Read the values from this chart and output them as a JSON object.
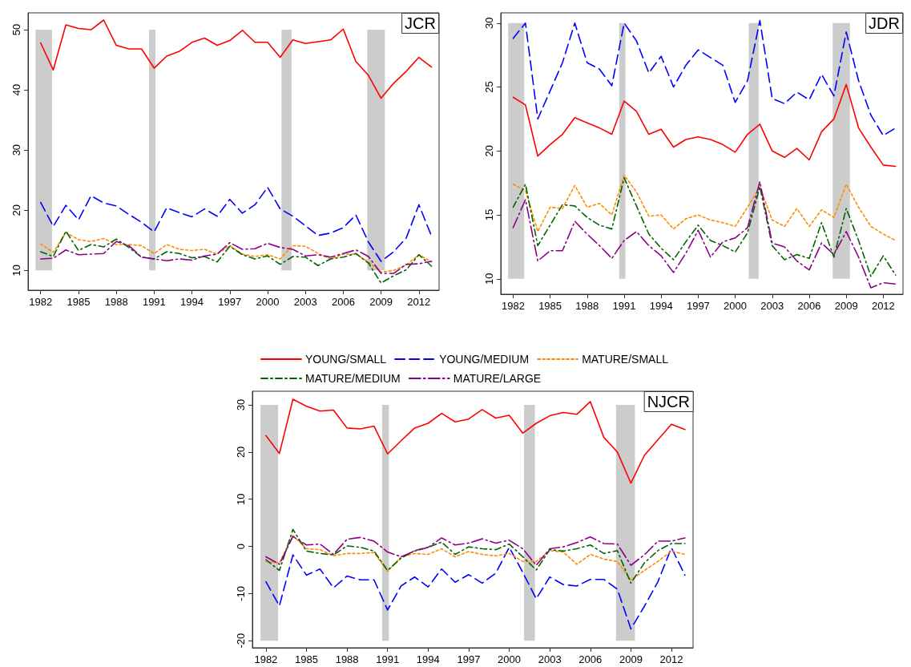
{
  "chart_data": [
    {
      "type": "line",
      "title": "JCR",
      "x": [
        1982,
        1983,
        1984,
        1985,
        1986,
        1987,
        1988,
        1989,
        1990,
        1991,
        1992,
        1993,
        1994,
        1995,
        1996,
        1997,
        1998,
        1999,
        2000,
        2001,
        2002,
        2003,
        2004,
        2005,
        2006,
        2007,
        2008,
        2009,
        2010,
        2011,
        2012,
        2013
      ],
      "xlim": [
        1981,
        2013.6
      ],
      "xticks": [
        1982,
        1985,
        1988,
        1991,
        1994,
        1997,
        2000,
        2003,
        2006,
        2009,
        2012
      ],
      "ylim": [
        6.7,
        52.8
      ],
      "yticks": [
        10,
        20,
        30,
        40,
        50
      ],
      "grid": false,
      "legend": false,
      "bands": [
        {
          "axis": "x",
          "from": 1981.6,
          "to": 1982.9,
          "color": "#cccccc"
        },
        {
          "axis": "x",
          "from": 1990.6,
          "to": 1991.1,
          "color": "#cccccc"
        },
        {
          "axis": "x",
          "from": 2001.1,
          "to": 2001.9,
          "color": "#cccccc"
        },
        {
          "axis": "x",
          "from": 2007.9,
          "to": 2009.3,
          "color": "#cccccc"
        }
      ],
      "series": [
        {
          "color": "#ff0000",
          "line_style": "solid",
          "values": [
            47.8,
            43.3,
            50.8,
            50.2,
            50.0,
            51.6,
            47.4,
            46.8,
            46.8,
            43.6,
            45.6,
            46.4,
            47.9,
            48.6,
            47.4,
            48.2,
            49.9,
            47.9,
            47.9,
            45.4,
            48.3,
            47.7,
            48.0,
            48.3,
            50.1,
            44.7,
            42.4,
            38.6,
            41.1,
            43.1,
            45.4,
            43.8
          ]
        },
        {
          "color": "#0000ff",
          "line_style": "dashed",
          "values": [
            21.3,
            17.3,
            20.8,
            18.4,
            22.4,
            21.2,
            20.7,
            19.3,
            18.0,
            16.4,
            20.4,
            19.6,
            18.9,
            20.2,
            19.0,
            21.8,
            19.5,
            20.9,
            23.8,
            20.2,
            19.0,
            17.4,
            15.8,
            16.2,
            17.1,
            19.2,
            14.7,
            11.5,
            13.1,
            15.4,
            20.9,
            15.7
          ]
        },
        {
          "color": "#ff8c00",
          "line_style": "dotted",
          "values": [
            14.4,
            13.0,
            16.3,
            15.1,
            14.8,
            15.3,
            14.3,
            14.3,
            14.1,
            12.8,
            14.3,
            13.5,
            13.3,
            13.5,
            12.7,
            14.1,
            12.7,
            12.3,
            12.6,
            11.9,
            14.1,
            14.0,
            12.8,
            11.9,
            12.7,
            12.7,
            11.4,
            9.7,
            10.0,
            10.9,
            12.6,
            11.4
          ]
        },
        {
          "color": "#006400",
          "line_style": "dashdot",
          "values": [
            13.1,
            12.3,
            16.5,
            13.3,
            14.3,
            13.9,
            15.2,
            13.8,
            12.2,
            11.9,
            13.1,
            12.8,
            12.1,
            12.3,
            11.4,
            14.0,
            12.6,
            11.9,
            12.4,
            11.0,
            12.3,
            12.2,
            10.8,
            11.9,
            12.2,
            12.8,
            11.2,
            7.9,
            9.1,
            10.1,
            12.6,
            10.7
          ]
        },
        {
          "color": "#8b008b",
          "line_style": "longdashdot",
          "values": [
            11.9,
            12.0,
            13.4,
            12.6,
            12.7,
            12.8,
            14.8,
            14.1,
            12.2,
            11.9,
            11.6,
            11.9,
            11.7,
            12.4,
            12.7,
            14.6,
            13.5,
            13.6,
            14.5,
            13.8,
            13.5,
            12.4,
            12.6,
            12.2,
            12.8,
            13.4,
            12.3,
            9.5,
            9.5,
            11.0,
            11.1,
            11.5
          ]
        }
      ]
    },
    {
      "type": "line",
      "title": "JDR",
      "x": [
        1982,
        1983,
        1984,
        1985,
        1986,
        1987,
        1988,
        1989,
        1990,
        1991,
        1992,
        1993,
        1994,
        1995,
        1996,
        1997,
        1998,
        1999,
        2000,
        2001,
        2002,
        2003,
        2004,
        2005,
        2006,
        2007,
        2008,
        2009,
        2010,
        2011,
        2012,
        2013
      ],
      "xlim": [
        1981,
        2013.6
      ],
      "xticks": [
        1982,
        1985,
        1988,
        1991,
        1994,
        1997,
        2000,
        2003,
        2006,
        2009,
        2012
      ],
      "ylim": [
        8.8,
        30.8
      ],
      "yticks": [
        10,
        15,
        20,
        25,
        30
      ],
      "grid": false,
      "legend": false,
      "bands": [
        {
          "axis": "x",
          "from": 1981.6,
          "to": 1982.9,
          "color": "#cccccc"
        },
        {
          "axis": "x",
          "from": 1990.6,
          "to": 1991.1,
          "color": "#cccccc"
        },
        {
          "axis": "x",
          "from": 2001.1,
          "to": 2001.9,
          "color": "#cccccc"
        },
        {
          "axis": "x",
          "from": 2007.9,
          "to": 2009.3,
          "color": "#cccccc"
        }
      ],
      "series": [
        {
          "color": "#ff0000",
          "line_style": "solid",
          "values": [
            24.2,
            23.6,
            19.6,
            20.5,
            21.3,
            22.6,
            22.2,
            21.8,
            21.3,
            23.9,
            23.1,
            21.3,
            21.7,
            20.3,
            20.9,
            21.1,
            20.9,
            20.5,
            19.9,
            21.3,
            22.1,
            20.0,
            19.5,
            20.2,
            19.3,
            21.5,
            22.5,
            25.2,
            21.8,
            20.3,
            18.9,
            18.8
          ]
        },
        {
          "color": "#0000ff",
          "line_style": "dashed",
          "values": [
            28.8,
            30.0,
            22.5,
            24.7,
            26.9,
            30.0,
            26.9,
            26.4,
            25.1,
            30.0,
            28.6,
            26.1,
            27.4,
            25.0,
            26.7,
            27.9,
            27.3,
            26.7,
            23.8,
            25.5,
            30.2,
            24.1,
            23.7,
            24.6,
            24.0,
            26.0,
            24.3,
            29.3,
            25.5,
            22.8,
            21.2,
            21.8
          ]
        },
        {
          "color": "#ff8c00",
          "line_style": "dotted",
          "values": [
            17.4,
            16.9,
            13.7,
            15.6,
            15.5,
            17.3,
            15.6,
            15.9,
            15.0,
            18.1,
            16.8,
            14.9,
            15.0,
            13.9,
            14.7,
            15.0,
            14.6,
            14.4,
            14.1,
            15.6,
            17.2,
            14.6,
            14.1,
            15.5,
            14.1,
            15.4,
            14.8,
            17.4,
            15.6,
            14.1,
            13.5,
            13.0
          ]
        },
        {
          "color": "#006400",
          "line_style": "dashdot",
          "values": [
            15.6,
            17.4,
            12.6,
            14.2,
            15.8,
            15.7,
            14.8,
            14.2,
            13.9,
            17.9,
            15.7,
            13.5,
            12.4,
            11.5,
            12.9,
            14.2,
            13.0,
            12.6,
            12.1,
            13.6,
            17.2,
            12.6,
            11.5,
            11.9,
            11.6,
            14.4,
            11.7,
            15.5,
            13.0,
            10.2,
            11.8,
            10.3
          ]
        },
        {
          "color": "#8b008b",
          "line_style": "longdashdot",
          "values": [
            14.0,
            16.2,
            11.4,
            12.2,
            12.2,
            14.5,
            13.5,
            12.6,
            11.6,
            13.0,
            13.7,
            12.6,
            11.8,
            10.5,
            12.0,
            13.8,
            11.7,
            12.9,
            13.2,
            14.0,
            17.6,
            12.8,
            12.5,
            11.4,
            10.7,
            12.8,
            11.9,
            13.7,
            11.7,
            9.3,
            9.7,
            9.6
          ]
        }
      ]
    },
    {
      "type": "line",
      "title": "NJCR",
      "x": [
        1982,
        1983,
        1984,
        1985,
        1986,
        1987,
        1988,
        1989,
        1990,
        1991,
        1992,
        1993,
        1994,
        1995,
        1996,
        1997,
        1998,
        1999,
        2000,
        2001,
        2002,
        2003,
        2004,
        2005,
        2006,
        2007,
        2008,
        2009,
        2010,
        2011,
        2012,
        2013
      ],
      "xlim": [
        1981,
        2013.6
      ],
      "xticks": [
        1982,
        1985,
        1988,
        1991,
        1994,
        1997,
        2000,
        2003,
        2006,
        2009,
        2012
      ],
      "ylim": [
        -21.5,
        32.9
      ],
      "yticks": [
        -20,
        -10,
        0,
        10,
        20,
        30
      ],
      "grid": false,
      "legend": "top",
      "bands": [
        {
          "axis": "x",
          "from": 1981.6,
          "to": 1982.9,
          "color": "#cccccc"
        },
        {
          "axis": "x",
          "from": 1990.6,
          "to": 1991.1,
          "color": "#cccccc"
        },
        {
          "axis": "x",
          "from": 2001.1,
          "to": 2001.9,
          "color": "#cccccc"
        },
        {
          "axis": "x",
          "from": 2007.9,
          "to": 2009.3,
          "color": "#cccccc"
        }
      ],
      "series": [
        {
          "name": "YOUNG/SMALL",
          "color": "#ff0000",
          "line_style": "solid",
          "values": [
            23.5,
            19.7,
            31.2,
            29.7,
            28.7,
            28.9,
            25.1,
            24.9,
            25.5,
            19.6,
            22.4,
            25.1,
            26.1,
            28.2,
            26.4,
            27.0,
            29.0,
            27.2,
            27.8,
            24.0,
            26.1,
            27.7,
            28.4,
            28.0,
            30.7,
            23.1,
            20.0,
            13.4,
            19.3,
            22.6,
            25.9,
            24.8
          ]
        },
        {
          "name": "YOUNG/MEDIUM",
          "color": "#0000ff",
          "line_style": "dashed",
          "values": [
            -7.5,
            -12.6,
            -1.8,
            -6.1,
            -4.8,
            -8.8,
            -6.3,
            -7.1,
            -7.1,
            -13.5,
            -8.4,
            -6.5,
            -8.6,
            -4.8,
            -7.6,
            -6.0,
            -7.8,
            -5.7,
            -0.2,
            -5.5,
            -11.1,
            -6.5,
            -8.1,
            -8.4,
            -7.0,
            -7.0,
            -9.1,
            -17.5,
            -12.7,
            -7.5,
            -0.3,
            -6.1
          ]
        },
        {
          "name": "MATURE/SMALL",
          "color": "#ff8c00",
          "line_style": "dotted",
          "values": [
            -3.2,
            -3.5,
            2.3,
            -0.5,
            -0.7,
            -2.0,
            -1.5,
            -1.5,
            -1.3,
            -5.3,
            -2.2,
            -1.5,
            -1.7,
            -0.5,
            -2.2,
            -1.1,
            -1.7,
            -2.0,
            -1.5,
            -3.2,
            -3.2,
            -0.9,
            -1.2,
            -3.8,
            -1.7,
            -2.7,
            -3.2,
            -7.1,
            -5.1,
            -3.2,
            -1.0,
            -1.7
          ]
        },
        {
          "name": "MATURE/MEDIUM",
          "color": "#006400",
          "line_style": "dashdot",
          "values": [
            -2.8,
            -5.1,
            3.6,
            -1.0,
            -1.5,
            -1.8,
            0.1,
            -0.2,
            -1.0,
            -5.1,
            -2.5,
            -0.9,
            -0.2,
            0.9,
            -1.7,
            -0.1,
            -0.5,
            -0.7,
            0.5,
            -2.2,
            -5.0,
            -0.7,
            -1.0,
            -0.5,
            0.3,
            -1.5,
            -0.9,
            -7.8,
            -3.5,
            -0.9,
            0.6,
            0.6
          ]
        },
        {
          "name": "MATURE/LARGE",
          "color": "#8b008b",
          "line_style": "longdashdot",
          "values": [
            -2.2,
            -3.8,
            2.1,
            0.3,
            0.5,
            -1.7,
            1.5,
            1.9,
            1.1,
            -1.2,
            -2.2,
            -1.0,
            -0.2,
            1.8,
            0.3,
            0.7,
            1.6,
            0.7,
            1.3,
            -0.5,
            -4.0,
            -0.5,
            -0.1,
            0.8,
            2.0,
            0.6,
            0.5,
            -4.0,
            -1.8,
            1.1,
            1.1,
            1.8
          ]
        }
      ]
    }
  ]
}
